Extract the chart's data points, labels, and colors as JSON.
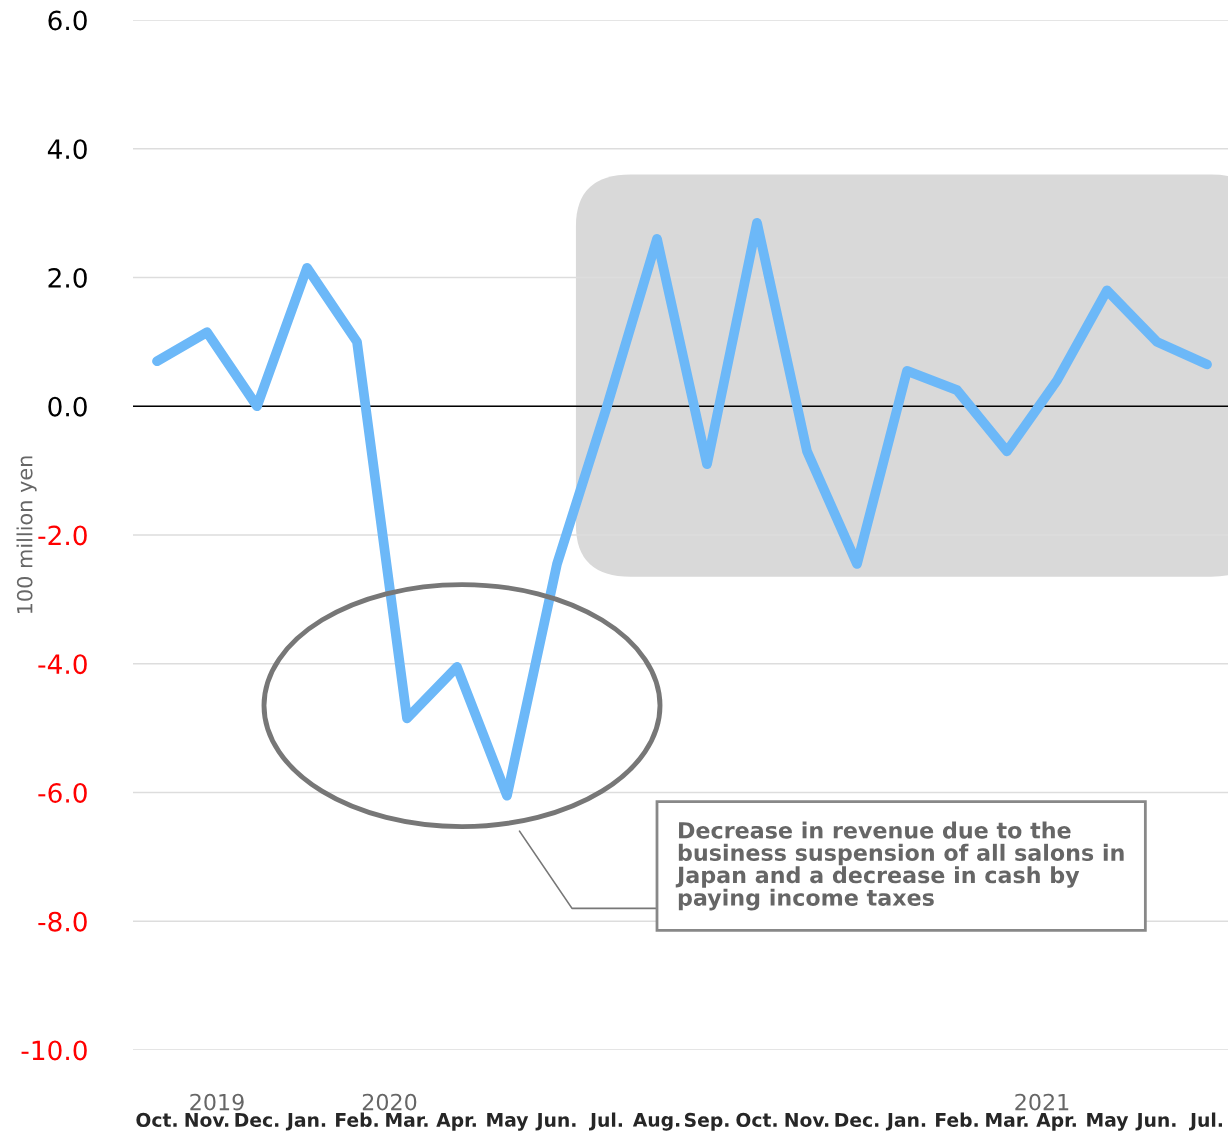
{
  "chart_data": {
    "type": "line",
    "ylabel": "100 million yen",
    "categories": [
      "Oct.",
      "Nov.",
      "Dec.",
      "Jan.",
      "Feb.",
      "Mar.",
      "Apr.",
      "May",
      "Jun.",
      "Jul.",
      "Aug.",
      "Sep.",
      "Oct.",
      "Nov.",
      "Dec.",
      "Jan.",
      "Feb.",
      "Mar.",
      "Apr.",
      "May",
      "Jun.",
      "Jul."
    ],
    "series": [
      {
        "color": "#6cb8f8",
        "values": [
          0.7,
          1.15,
          0.0,
          2.15,
          1.0,
          -4.85,
          -4.05,
          -6.05,
          -2.45,
          0.0,
          2.6,
          -0.9,
          2.85,
          -0.7,
          -2.45,
          0.55,
          0.25,
          -0.7,
          0.4,
          1.8,
          1.0,
          0.65
        ]
      }
    ],
    "ylim": [
      -10,
      6
    ],
    "yticks": [
      {
        "value": -10,
        "label": "-10.0"
      },
      {
        "value": -8,
        "label": "-8.0"
      },
      {
        "value": -6,
        "label": "-6.0"
      },
      {
        "value": -4,
        "label": "-4.0"
      },
      {
        "value": -2,
        "label": "-2.0"
      },
      {
        "value": 0,
        "label": "0.0"
      },
      {
        "value": 2,
        "label": "2.0"
      },
      {
        "value": 4,
        "label": "4.0"
      },
      {
        "value": 6,
        "label": "6.0"
      }
    ],
    "ref_lines": [
      {
        "axis": "y",
        "value": 0,
        "color": "#000000"
      }
    ],
    "grid": "y",
    "legend": false,
    "marker": "none",
    "line_style": "solid",
    "annotations": [
      "2019",
      "2020",
      "2021",
      "Decrease in revenue due to the business suspension of all salons in Japan and a decrease in cash by paying income taxes"
    ]
  }
}
